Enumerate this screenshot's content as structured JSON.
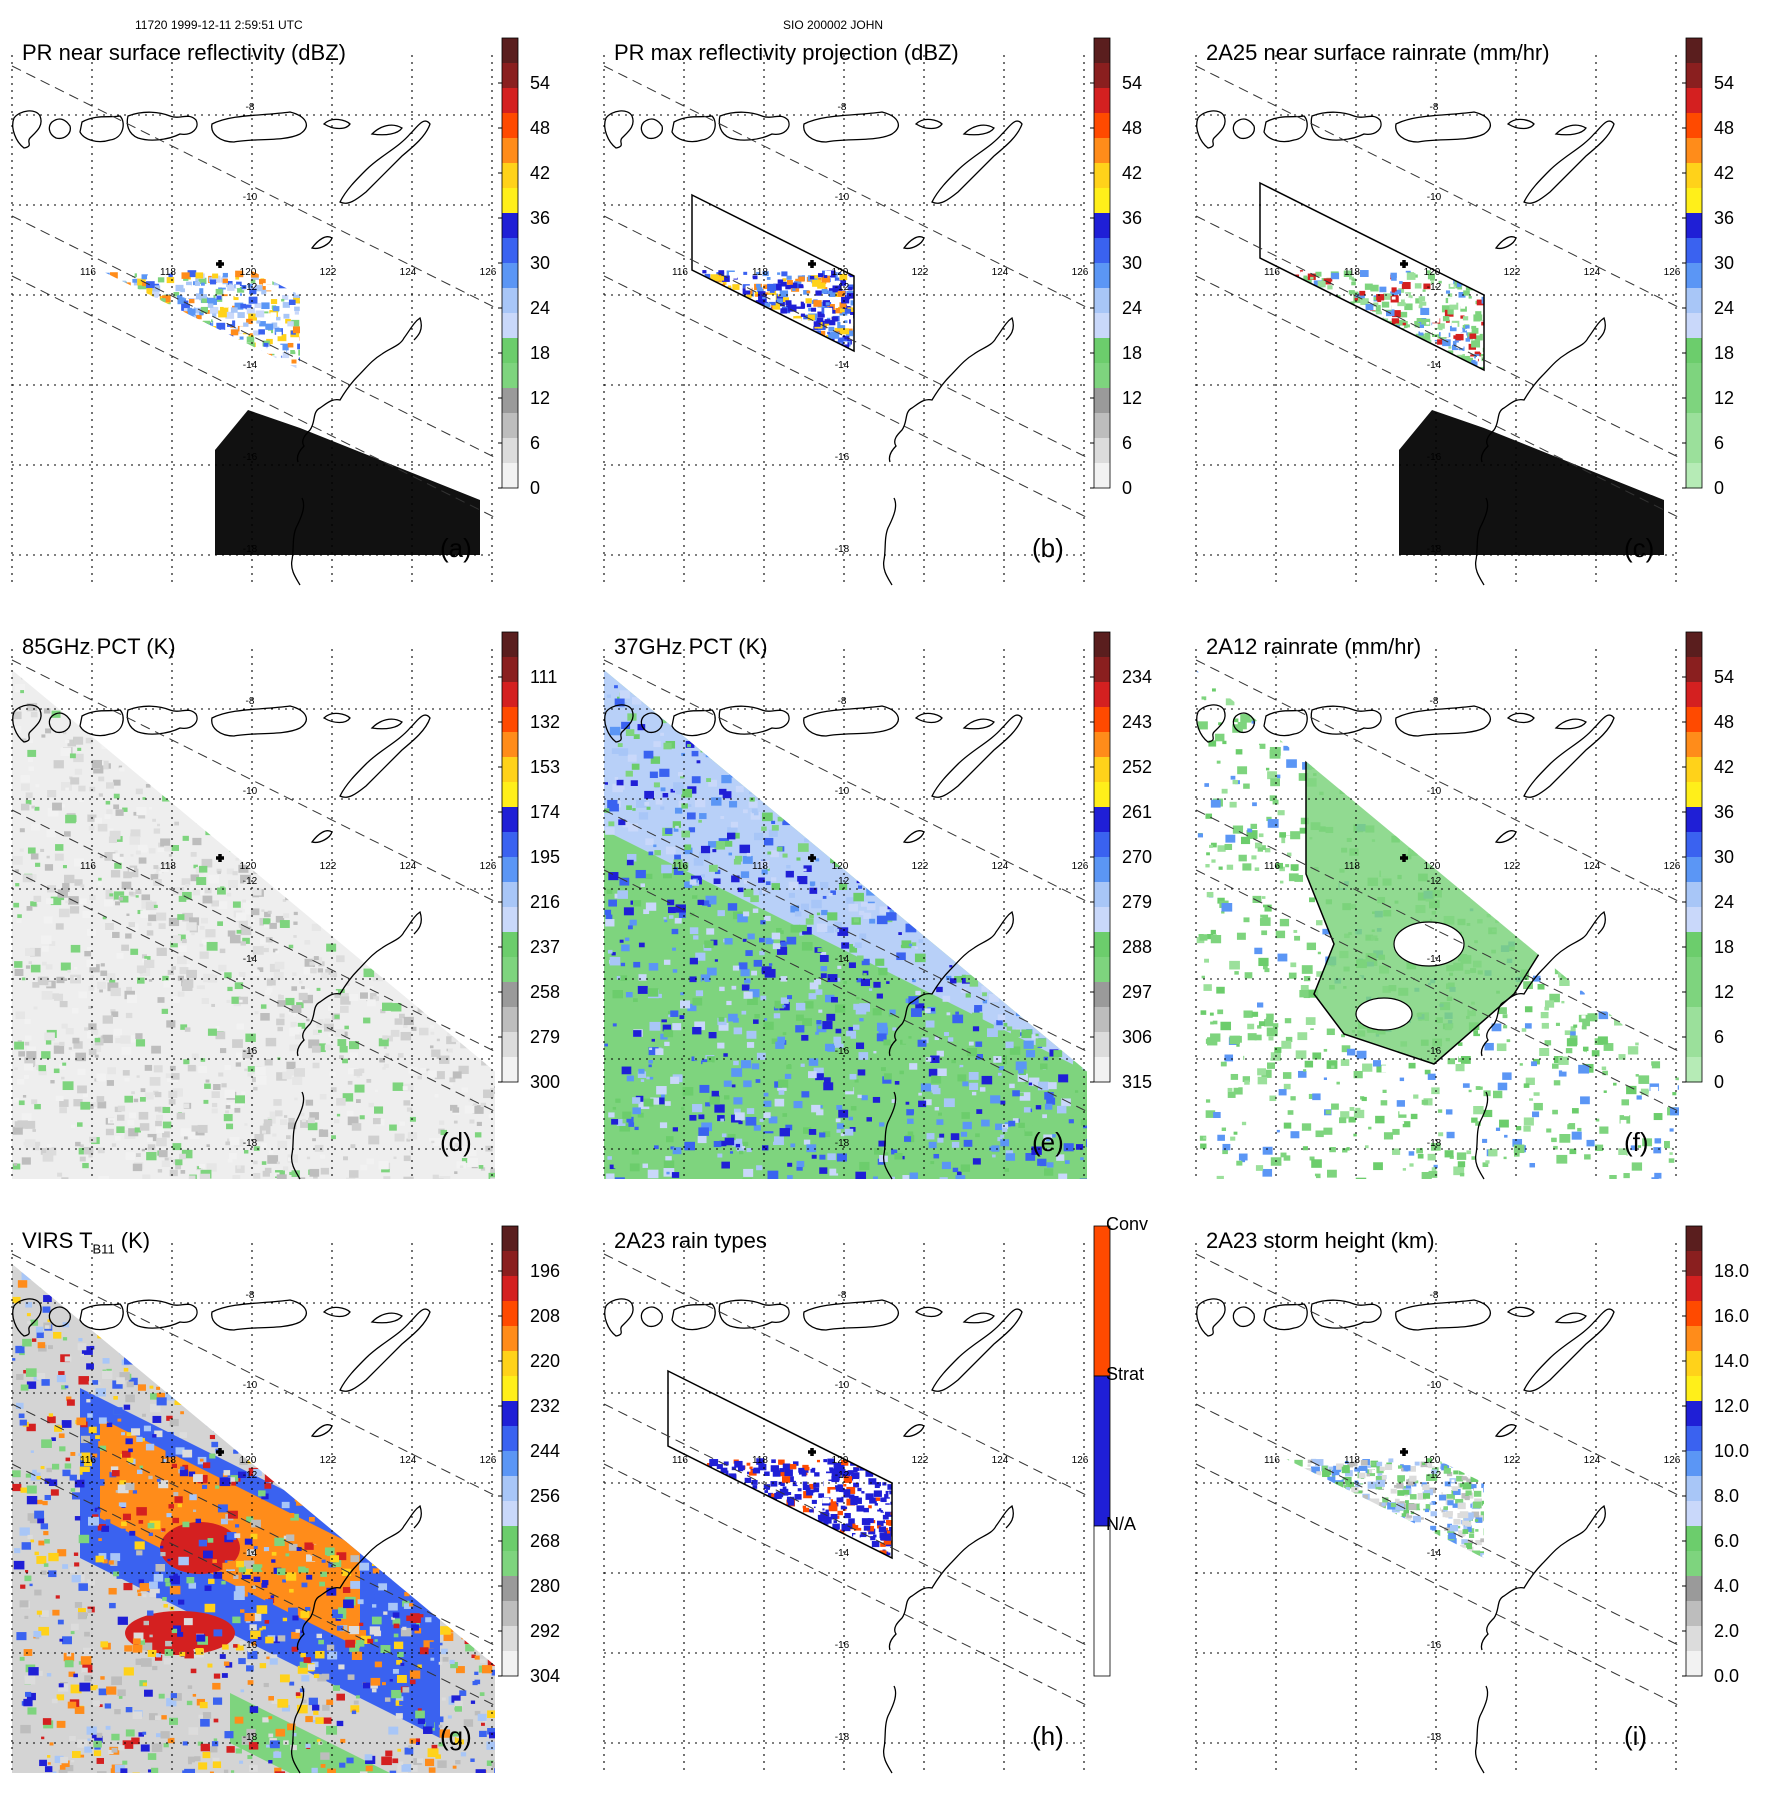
{
  "header": {
    "left": "11720 1999-12-11 2:59:51 UTC",
    "center": "SIO 200002 JOHN"
  },
  "map_labels": {
    "lon": [
      "116",
      "118",
      "120",
      "122",
      "124",
      "126"
    ],
    "lat": [
      "-8",
      "-10",
      "-12",
      "-14",
      "-16",
      "-18"
    ]
  },
  "panels": [
    {
      "id": "a",
      "title": "PR near surface reflectivity (dBZ)",
      "label": "(a)",
      "kind": "pr_nsr",
      "colorbar": {
        "ticks": [
          "54",
          "48",
          "42",
          "36",
          "30",
          "24",
          "18",
          "12",
          "6",
          "0"
        ],
        "colors": [
          "#5a1e1e",
          "#8a1f1f",
          "#d42020",
          "#ff4a00",
          "#ff8c1a",
          "#ffd21a",
          "#ffef1a",
          "#1f1fd6",
          "#3a62f0",
          "#5b96f5",
          "#a8c6f7",
          "#c9d8fa",
          "#6ccd6c",
          "#7ed47e",
          "#9a9a9a",
          "#bdbdbd",
          "#dcdcdc",
          "#f2f2f2"
        ]
      }
    },
    {
      "id": "b",
      "title": "PR max reflectivity projection (dBZ)",
      "label": "(b)",
      "kind": "pr_max",
      "colorbar": {
        "ticks": [
          "54",
          "48",
          "42",
          "36",
          "30",
          "24",
          "18",
          "12",
          "6",
          "0"
        ],
        "colors": [
          "#5a1e1e",
          "#8a1f1f",
          "#d42020",
          "#ff4a00",
          "#ff8c1a",
          "#ffd21a",
          "#ffef1a",
          "#1f1fd6",
          "#3a62f0",
          "#5b96f5",
          "#a8c6f7",
          "#c9d8fa",
          "#6ccd6c",
          "#7ed47e",
          "#9a9a9a",
          "#bdbdbd",
          "#dcdcdc",
          "#f2f2f2"
        ]
      }
    },
    {
      "id": "c",
      "title": "2A25 near surface rainrate (mm/hr)",
      "label": "(c)",
      "kind": "rain25",
      "colorbar": {
        "ticks": [
          "54",
          "48",
          "42",
          "36",
          "30",
          "24",
          "18",
          "12",
          "6",
          "0"
        ],
        "colors": [
          "#5a1e1e",
          "#8a1f1f",
          "#d42020",
          "#ff4a00",
          "#ff8c1a",
          "#ffd21a",
          "#ffef1a",
          "#1f1fd6",
          "#3a62f0",
          "#5b96f5",
          "#a8c6f7",
          "#c9d8fa",
          "#6ccd6c",
          "#7ed47e",
          "#7ed47e",
          "#9be09b",
          "#9be09b",
          "#b6ebb6"
        ]
      }
    },
    {
      "id": "d",
      "title": "85GHz PCT (K)",
      "label": "(d)",
      "kind": "pct85",
      "colorbar": {
        "ticks": [
          "111",
          "132",
          "153",
          "174",
          "195",
          "216",
          "237",
          "258",
          "279",
          "300"
        ],
        "colors": [
          "#5a1e1e",
          "#8a1f1f",
          "#d42020",
          "#ff4a00",
          "#ff8c1a",
          "#ffd21a",
          "#ffef1a",
          "#1f1fd6",
          "#3a62f0",
          "#5b96f5",
          "#a8c6f7",
          "#c9d8fa",
          "#6ccd6c",
          "#7ed47e",
          "#9a9a9a",
          "#bdbdbd",
          "#dcdcdc",
          "#f2f2f2"
        ]
      }
    },
    {
      "id": "e",
      "title": "37GHz PCT (K)",
      "label": "(e)",
      "kind": "pct37",
      "colorbar": {
        "ticks": [
          "234",
          "243",
          "252",
          "261",
          "270",
          "279",
          "288",
          "297",
          "306",
          "315"
        ],
        "colors": [
          "#5a1e1e",
          "#8a1f1f",
          "#d42020",
          "#ff4a00",
          "#ff8c1a",
          "#ffd21a",
          "#ffef1a",
          "#1f1fd6",
          "#3a62f0",
          "#5b96f5",
          "#a8c6f7",
          "#c9d8fa",
          "#6ccd6c",
          "#7ed47e",
          "#9a9a9a",
          "#bdbdbd",
          "#dcdcdc",
          "#f2f2f2"
        ]
      }
    },
    {
      "id": "f",
      "title": "2A12 rainrate (mm/hr)",
      "label": "(f)",
      "kind": "rain12",
      "colorbar": {
        "ticks": [
          "54",
          "48",
          "42",
          "36",
          "30",
          "24",
          "18",
          "12",
          "6",
          "0"
        ],
        "colors": [
          "#5a1e1e",
          "#8a1f1f",
          "#d42020",
          "#ff4a00",
          "#ff8c1a",
          "#ffd21a",
          "#ffef1a",
          "#1f1fd6",
          "#3a62f0",
          "#5b96f5",
          "#a8c6f7",
          "#c9d8fa",
          "#6ccd6c",
          "#7ed47e",
          "#7ed47e",
          "#9be09b",
          "#9be09b",
          "#b6ebb6"
        ]
      }
    },
    {
      "id": "g",
      "title_main": "VIRS T",
      "title_sub": "B11",
      "title_end": " (K)",
      "label": "(g)",
      "kind": "virs",
      "colorbar": {
        "ticks": [
          "196",
          "208",
          "220",
          "232",
          "244",
          "256",
          "268",
          "280",
          "292",
          "304"
        ],
        "colors": [
          "#5a1e1e",
          "#8a1f1f",
          "#d42020",
          "#ff4a00",
          "#ff8c1a",
          "#ffd21a",
          "#ffef1a",
          "#1f1fd6",
          "#3a62f0",
          "#5b96f5",
          "#a8c6f7",
          "#c9d8fa",
          "#6ccd6c",
          "#7ed47e",
          "#9a9a9a",
          "#bdbdbd",
          "#dcdcdc",
          "#f2f2f2"
        ]
      }
    },
    {
      "id": "h",
      "title": "2A23 rain types",
      "label": "(h)",
      "kind": "types",
      "colorbar": {
        "ticks": [
          "Conv",
          "Strat",
          "N/A"
        ],
        "categorical": true,
        "colors": [
          "#ff4a00",
          "#1f1fd6",
          "#ffffff"
        ]
      }
    },
    {
      "id": "i",
      "title": "2A23 storm height (km)",
      "label": "(i)",
      "kind": "height",
      "colorbar": {
        "ticks": [
          "18.0",
          "16.0",
          "14.0",
          "12.0",
          "10.0",
          "8.0",
          "6.0",
          "4.0",
          "2.0",
          "0.0"
        ],
        "colors": [
          "#5a1e1e",
          "#8a1f1f",
          "#d42020",
          "#ff4a00",
          "#ff8c1a",
          "#ffd21a",
          "#ffef1a",
          "#1f1fd6",
          "#3a62f0",
          "#5b96f5",
          "#a8c6f7",
          "#c9d8fa",
          "#6ccd6c",
          "#7ed47e",
          "#9a9a9a",
          "#bdbdbd",
          "#dcdcdc",
          "#f2f2f2"
        ]
      }
    }
  ]
}
